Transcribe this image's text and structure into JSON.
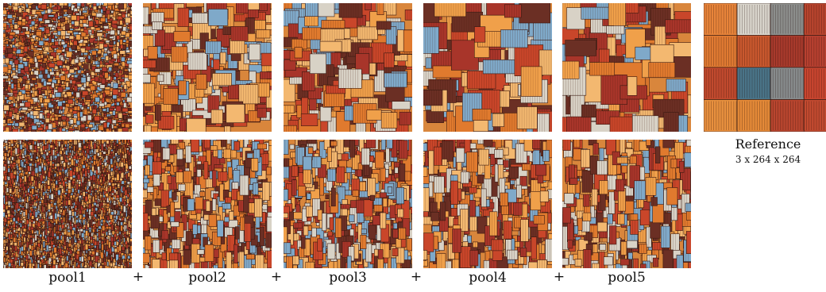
{
  "figure": {
    "columns": [
      {
        "label": "pool1"
      },
      {
        "label": "pool2"
      },
      {
        "label": "pool3"
      },
      {
        "label": "pool4"
      },
      {
        "label": "pool5"
      }
    ],
    "separator": "+",
    "reference": {
      "title": "Reference",
      "dims": "3 x 264 x 264"
    },
    "palette": [
      "#e07a2e",
      "#c9462a",
      "#f0a04a",
      "#a8352a",
      "#7fa9c9",
      "#d8d2c6",
      "#6b2f24",
      "#f3b870"
    ]
  }
}
